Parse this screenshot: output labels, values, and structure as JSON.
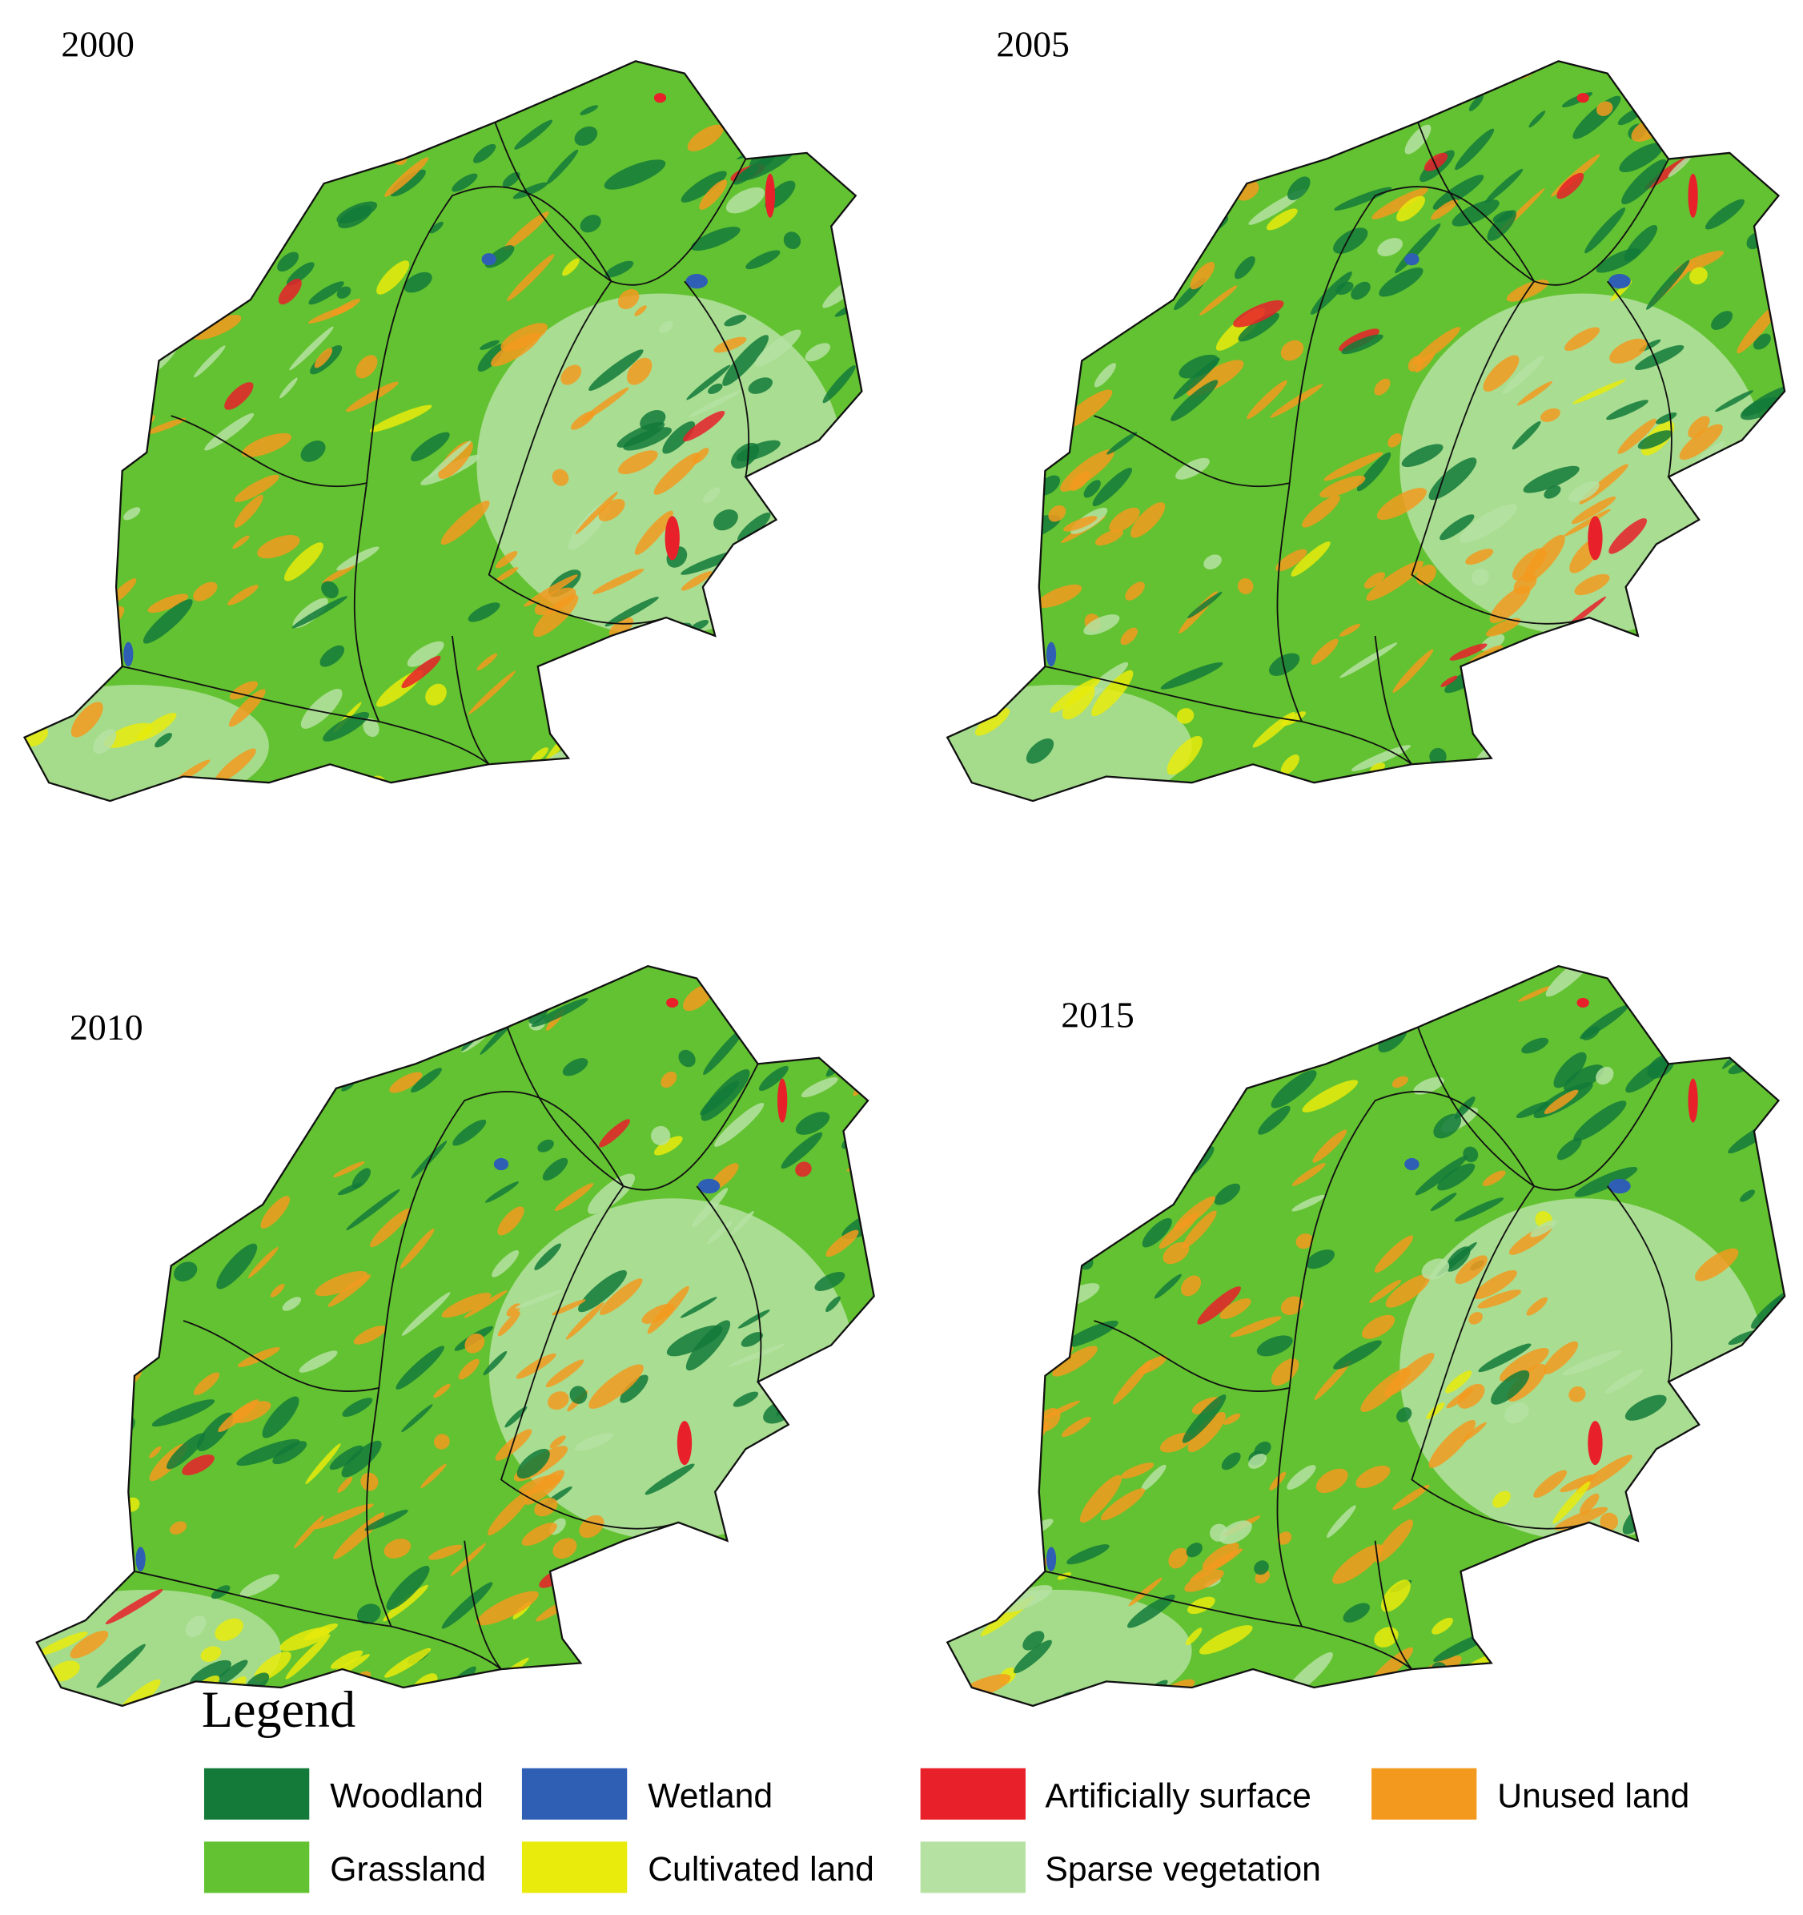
{
  "panels": [
    {
      "title": "2000"
    },
    {
      "title": "2005"
    },
    {
      "title": "2010"
    },
    {
      "title": "2015"
    }
  ],
  "legend": {
    "title": "Legend",
    "items": [
      {
        "label": "Woodland",
        "color": "#137a3a"
      },
      {
        "label": "Wetland",
        "color": "#2f5fb4"
      },
      {
        "label": "Artificially surface",
        "color": "#e8202a"
      },
      {
        "label": "Unused land",
        "color": "#f39a1e"
      },
      {
        "label": "Grassland",
        "color": "#63c231"
      },
      {
        "label": "Cultivated land",
        "color": "#e8eb0c"
      },
      {
        "label": "Sparse vegetation",
        "color": "#b5e2a2"
      }
    ]
  }
}
